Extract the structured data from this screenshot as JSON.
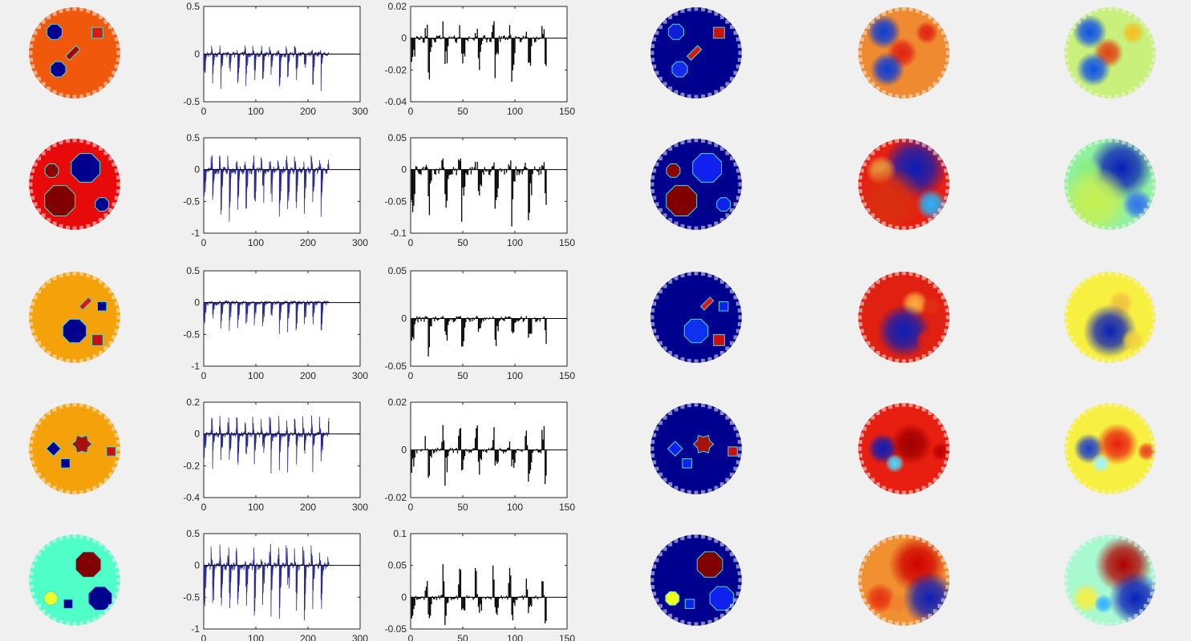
{
  "figure": {
    "background": "#f0f0f0",
    "axis_color": "#262626",
    "signal_colors": {
      "left": "#2b2b9a",
      "right": "#000000"
    },
    "colormap": "jet"
  },
  "chart_data": [
    {
      "type": "line",
      "row": 1,
      "column": 2,
      "xlim": [
        0,
        300
      ],
      "ylim": [
        -0.5,
        0.5
      ],
      "xticks": [
        "0",
        "100",
        "200",
        "300"
      ],
      "yticks": [
        "0.5",
        "0",
        "-0.5"
      ],
      "series": [
        {
          "color": "#2b2b9a",
          "n_points": 240,
          "pos_max": 0.1,
          "neg_max": -0.4
        }
      ]
    },
    {
      "type": "bar",
      "row": 1,
      "column": 3,
      "xlim": [
        0,
        150
      ],
      "ylim": [
        -0.04,
        0.02
      ],
      "xticks": [
        "0",
        "50",
        "100",
        "150"
      ],
      "yticks": [
        "0.02",
        "0",
        "-0.02",
        "-0.04"
      ],
      "series": [
        {
          "color": "#000000",
          "n_points": 130,
          "pos_max": 0.012,
          "neg_max": -0.032
        }
      ]
    },
    {
      "type": "line",
      "row": 2,
      "column": 2,
      "xlim": [
        0,
        300
      ],
      "ylim": [
        -1,
        0.5
      ],
      "xticks": [
        "0",
        "100",
        "200",
        "300"
      ],
      "yticks": [
        "0.5",
        "0",
        "-0.5",
        "-1"
      ],
      "series": [
        {
          "color": "#2b2b9a",
          "n_points": 240,
          "pos_max": 0.25,
          "neg_max": -0.85
        }
      ]
    },
    {
      "type": "bar",
      "row": 2,
      "column": 3,
      "xlim": [
        0,
        150
      ],
      "ylim": [
        -0.1,
        0.05
      ],
      "xticks": [
        "0",
        "50",
        "100",
        "150"
      ],
      "yticks": [
        "0.05",
        "0",
        "-0.05",
        "-0.1"
      ],
      "series": [
        {
          "color": "#000000",
          "n_points": 130,
          "pos_max": 0.02,
          "neg_max": -0.092
        }
      ]
    },
    {
      "type": "line",
      "row": 3,
      "column": 2,
      "xlim": [
        0,
        300
      ],
      "ylim": [
        -1,
        0.5
      ],
      "xticks": [
        "0",
        "100",
        "200",
        "300"
      ],
      "yticks": [
        "0.5",
        "0",
        "-0.5",
        "-1"
      ],
      "series": [
        {
          "color": "#2b2b9a",
          "n_points": 240,
          "pos_max": 0.03,
          "neg_max": -0.55
        }
      ]
    },
    {
      "type": "bar",
      "row": 3,
      "column": 3,
      "xlim": [
        0,
        150
      ],
      "ylim": [
        -0.05,
        0.05
      ],
      "xticks": [
        "0",
        "50",
        "100",
        "150"
      ],
      "yticks": [
        "0.05",
        "0",
        "-0.05"
      ],
      "series": [
        {
          "color": "#000000",
          "n_points": 130,
          "pos_max": 0.003,
          "neg_max": -0.04
        }
      ]
    },
    {
      "type": "line",
      "row": 4,
      "column": 2,
      "xlim": [
        0,
        300
      ],
      "ylim": [
        -0.4,
        0.2
      ],
      "xticks": [
        "0",
        "100",
        "200",
        "300"
      ],
      "yticks": [
        "0.2",
        "0",
        "-0.2",
        "-0.4"
      ],
      "series": [
        {
          "color": "#2b2b9a",
          "n_points": 240,
          "pos_max": 0.13,
          "neg_max": -0.25
        }
      ]
    },
    {
      "type": "bar",
      "row": 4,
      "column": 3,
      "xlim": [
        0,
        150
      ],
      "ylim": [
        -0.02,
        0.02
      ],
      "xticks": [
        "0",
        "50",
        "100",
        "150"
      ],
      "yticks": [
        "0.02",
        "0",
        "-0.02"
      ],
      "series": [
        {
          "color": "#000000",
          "n_points": 130,
          "pos_max": 0.012,
          "neg_max": -0.015
        }
      ]
    },
    {
      "type": "line",
      "row": 5,
      "column": 2,
      "xlim": [
        0,
        300
      ],
      "ylim": [
        -1,
        0.5
      ],
      "xticks": [
        "0",
        "100",
        "200",
        "300"
      ],
      "yticks": [
        "0.5",
        "0",
        "-0.5",
        "-1"
      ],
      "series": [
        {
          "color": "#2b2b9a",
          "n_points": 240,
          "pos_max": 0.38,
          "neg_max": -0.9
        }
      ]
    },
    {
      "type": "bar",
      "row": 5,
      "column": 3,
      "xlim": [
        0,
        150
      ],
      "ylim": [
        -0.05,
        0.1
      ],
      "xticks": [
        "0",
        "50",
        "100",
        "150"
      ],
      "yticks": [
        "0.1",
        "0.05",
        "0",
        "-0.05"
      ],
      "series": [
        {
          "color": "#000000",
          "n_points": 130,
          "pos_max": 0.06,
          "neg_max": -0.048
        }
      ]
    },
    {
      "type": "heatmap",
      "panel": "conductivity-maps",
      "columns": [
        1,
        4,
        5,
        6
      ],
      "rows": [
        {
          "true_bg": "#f0580c",
          "inclusions": [
            {
              "shape": "circle",
              "x": 0.28,
              "y": 0.27,
              "r": 0.09,
              "true": "#00008f",
              "recon_c4": "#1020d8",
              "recon_c5": "#0a3cd8",
              "recon_c6": "#1050e8"
            },
            {
              "shape": "square",
              "x": 0.75,
              "y": 0.28,
              "r": 0.06,
              "true": "#d81a10",
              "recon_c4": "#c8140c",
              "recon_c5": "#e02010",
              "recon_c6": "#f5c020"
            },
            {
              "shape": "cross",
              "x": 0.48,
              "y": 0.5,
              "r": 0.08,
              "true": "#a80000",
              "recon_c4": "#d81a10",
              "recon_c5": "#e02010",
              "recon_c6": "#e04010"
            },
            {
              "shape": "circle",
              "x": 0.32,
              "y": 0.68,
              "r": 0.09,
              "true": "#00008f",
              "recon_c4": "#1828ee",
              "recon_c5": "#0a3cd8",
              "recon_c6": "#1050e8"
            }
          ],
          "c4_bg": "#00008f",
          "c5_bg": "#f08a30",
          "c6_bg": "#c8f07a"
        },
        {
          "true_bg": "#e80a0a",
          "inclusions": [
            {
              "shape": "circle",
              "x": 0.62,
              "y": 0.32,
              "r": 0.17,
              "true": "#00008f",
              "recon_c4": "#1020ee",
              "recon_c5": "#0a1eb8",
              "recon_c6": "#0a1eb8"
            },
            {
              "shape": "circle",
              "x": 0.25,
              "y": 0.35,
              "r": 0.08,
              "true": "#8a0000",
              "recon_c4": "#8a0000",
              "recon_c5": "#e8a040",
              "recon_c6": "#88f080"
            },
            {
              "shape": "circle",
              "x": 0.34,
              "y": 0.68,
              "r": 0.18,
              "true": "#800000",
              "recon_c4": "#800000",
              "recon_c5": "#d83010",
              "recon_c6": "#c8f050"
            },
            {
              "shape": "circle",
              "x": 0.8,
              "y": 0.72,
              "r": 0.08,
              "true": "#00008f",
              "recon_c4": "#1020ee",
              "recon_c5": "#20b8ff",
              "recon_c6": "#3070f0"
            }
          ],
          "c4_bg": "#00008f",
          "c5_bg": "#e81e10",
          "c6_bg": "#90f0a0"
        },
        {
          "true_bg": "#f5a20a",
          "inclusions": [
            {
              "shape": "cross",
              "x": 0.62,
              "y": 0.35,
              "r": 0.07,
              "true": "#e81010",
              "recon_c4": "#e81010",
              "recon_c5": "#ffb040",
              "recon_c6": "#f0c040"
            },
            {
              "shape": "square",
              "x": 0.8,
              "y": 0.38,
              "r": 0.05,
              "true": "#00008f",
              "recon_c4": "#1020ee",
              "recon_c5": "#e03010",
              "recon_c6": "#f8f040"
            },
            {
              "shape": "circle",
              "x": 0.5,
              "y": 0.65,
              "r": 0.14,
              "true": "#00008f",
              "recon_c4": "#1030f0",
              "recon_c5": "#0a1eb8",
              "recon_c6": "#0a1eb8"
            },
            {
              "shape": "square",
              "x": 0.75,
              "y": 0.75,
              "r": 0.06,
              "true": "#c81010",
              "recon_c4": "#c81010",
              "recon_c5": "#e02010",
              "recon_c6": "#f0d040"
            }
          ],
          "c4_bg": "#00008f",
          "c5_bg": "#e02010",
          "c6_bg": "#f8f040"
        },
        {
          "true_bg": "#f5a20a",
          "inclusions": [
            {
              "shape": "diamond",
              "x": 0.27,
              "y": 0.5,
              "r": 0.08,
              "true": "#00008f",
              "recon_c4": "#1020ee",
              "recon_c5": "#0a1eb8",
              "recon_c6": "#1a3cc8"
            },
            {
              "shape": "star",
              "x": 0.58,
              "y": 0.45,
              "r": 0.11,
              "true": "#a81010",
              "recon_c4": "#a81010",
              "recon_c5": "#a00000",
              "recon_c6": "#e82010"
            },
            {
              "shape": "square",
              "x": 0.4,
              "y": 0.66,
              "r": 0.05,
              "true": "#00008f",
              "recon_c4": "#1020ee",
              "recon_c5": "#4cdcff",
              "recon_c6": "#a0f0ff"
            },
            {
              "shape": "square",
              "x": 0.9,
              "y": 0.53,
              "r": 0.05,
              "true": "#c81010",
              "recon_c4": "#c81010",
              "recon_c5": "#c00000",
              "recon_c6": "#e84020"
            }
          ],
          "c4_bg": "#00008f",
          "c5_bg": "#e81e10",
          "c6_bg": "#f8f040"
        },
        {
          "true_bg": "#50ffc8",
          "inclusions": [
            {
              "shape": "circle",
              "x": 0.65,
              "y": 0.33,
              "r": 0.15,
              "true": "#800000",
              "recon_c4": "#800000",
              "recon_c5": "#d00000",
              "recon_c6": "#b00000"
            },
            {
              "shape": "circle",
              "x": 0.24,
              "y": 0.7,
              "r": 0.08,
              "true": "#e8ff30",
              "recon_c4": "#f0ff20",
              "recon_c5": "#e83010",
              "recon_c6": "#f8f040"
            },
            {
              "shape": "square",
              "x": 0.43,
              "y": 0.76,
              "r": 0.05,
              "true": "#00008f",
              "recon_c4": "#1020ee",
              "recon_c5": "#f08030",
              "recon_c6": "#30b0ff"
            },
            {
              "shape": "circle",
              "x": 0.78,
              "y": 0.7,
              "r": 0.14,
              "true": "#00008f",
              "recon_c4": "#1020ee",
              "recon_c5": "#0a1eb8",
              "recon_c6": "#0a1eb8"
            }
          ],
          "c4_bg": "#00008f",
          "c5_bg": "#f09030",
          "c6_bg": "#a8f8d0"
        }
      ]
    }
  ]
}
